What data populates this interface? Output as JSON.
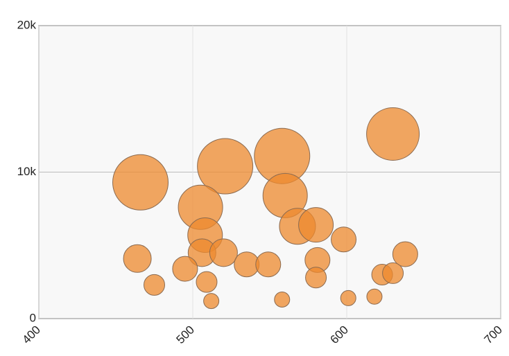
{
  "chart_data": {
    "type": "bubble",
    "color": "#ee8a2e",
    "series": [
      {
        "x": [
          466,
          521,
          558,
          630,
          560,
          505,
          568,
          580,
          508,
          598,
          506,
          520,
          464,
          638,
          581,
          535,
          549,
          495,
          623,
          630,
          580,
          475,
          509,
          512,
          558,
          601,
          618
        ],
        "values": [
          9300,
          10400,
          11100,
          12600,
          8400,
          7600,
          6300,
          6400,
          5700,
          5400,
          4500,
          4500,
          4100,
          4400,
          4000,
          3700,
          3700,
          3400,
          3000,
          3100,
          2800,
          2300,
          2500,
          1200,
          1300,
          1400,
          1500
        ],
        "sizes": [
          40,
          40,
          40,
          38,
          32,
          32,
          26,
          25,
          25,
          18,
          20,
          20,
          20,
          18,
          18,
          18,
          18,
          18,
          15,
          15,
          15,
          15,
          15,
          11,
          11,
          11,
          11
        ]
      }
    ],
    "xlim": [
      400,
      700
    ],
    "xticks": [
      400,
      500,
      600,
      700
    ],
    "ylim": [
      0,
      20000
    ],
    "yticks": [
      {
        "value": 0,
        "label": "0"
      },
      {
        "value": 10000,
        "label": "10k"
      },
      {
        "value": 20000,
        "label": "20k"
      }
    ],
    "grid": true
  }
}
